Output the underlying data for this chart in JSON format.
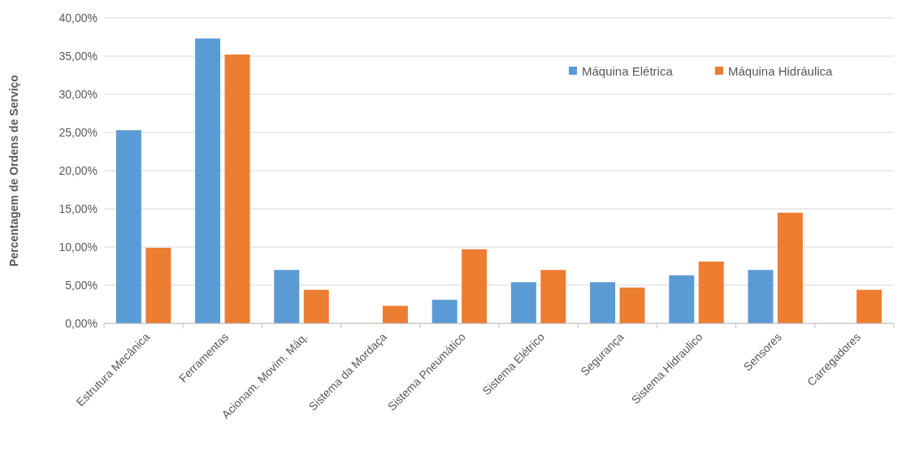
{
  "chart_data": {
    "type": "bar",
    "ylabel": "Percentagem de Ordens de Serviço",
    "categories": [
      "Estrutura Mecânica",
      "Ferramentas",
      "Acionam. Movim. Máq.",
      "Sistema da Mordaça",
      "Sistema Pneumático",
      "Sistema Elétrico",
      "Segurança",
      "Sistema Hidraulico",
      "Sensores",
      "Carregadores"
    ],
    "series": [
      {
        "name": "Máquina Elétrica",
        "color": "#5b9bd5",
        "values": [
          25.3,
          37.3,
          7.0,
          0,
          3.1,
          5.4,
          5.4,
          6.3,
          7.0,
          0
        ]
      },
      {
        "name": "Máquina Hidráulica",
        "color": "#ed7d31",
        "values": [
          9.9,
          35.2,
          4.4,
          2.3,
          9.7,
          7.0,
          4.7,
          8.1,
          14.5,
          4.4
        ]
      }
    ],
    "ylim": [
      0,
      40
    ],
    "yticks": [
      {
        "value": 0,
        "label": "0,00%"
      },
      {
        "value": 5,
        "label": "5,00%"
      },
      {
        "value": 10,
        "label": "10,00%"
      },
      {
        "value": 15,
        "label": "15,00%"
      },
      {
        "value": 20,
        "label": "20,00%"
      },
      {
        "value": 25,
        "label": "25,00%"
      },
      {
        "value": 30,
        "label": "30,00%"
      },
      {
        "value": 35,
        "label": "35,00%"
      },
      {
        "value": 40,
        "label": "40,00%"
      }
    ],
    "grid": "y",
    "legend": "top right"
  }
}
